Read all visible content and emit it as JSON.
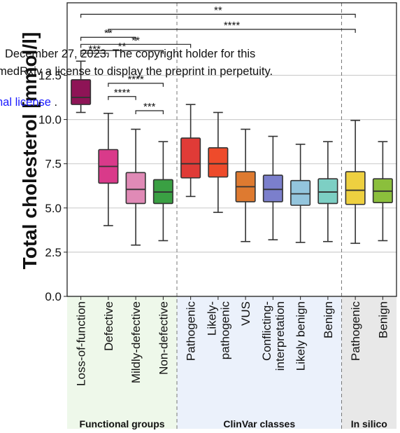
{
  "chart_data": {
    "type": "box",
    "ylabel": "Total cholesterol [mmol/l]",
    "ylim": [
      0,
      16.6
    ],
    "yticks": [
      0.0,
      2.5,
      5.0,
      7.5,
      10.0,
      12.5
    ],
    "ytick_labels": [
      "0.0",
      "2.5",
      "5.0",
      "7.5",
      "10.0",
      "12.5"
    ],
    "grid": "horizontal",
    "categories": [
      {
        "label": "Loss-of-function",
        "lines": [
          "Loss-of-function"
        ],
        "group": 0,
        "color": "#8e1456",
        "stats": {
          "whisker_low": 10.4,
          "q1": 10.85,
          "median": 11.25,
          "q3": 12.25,
          "whisker_high": 13.3
        }
      },
      {
        "label": "Defective",
        "lines": [
          "Defective"
        ],
        "group": 0,
        "color": "#d93a8a",
        "stats": {
          "whisker_low": 4.0,
          "q1": 6.4,
          "median": 7.35,
          "q3": 8.3,
          "whisker_high": 10.35
        }
      },
      {
        "label": "Mildly-defective",
        "lines": [
          "Mildly-defective"
        ],
        "group": 0,
        "color": "#e08ab6",
        "stats": {
          "whisker_low": 2.9,
          "q1": 5.25,
          "median": 6.05,
          "q3": 7.0,
          "whisker_high": 9.45
        }
      },
      {
        "label": "Non-defective",
        "lines": [
          "Non-defective"
        ],
        "group": 0,
        "color": "#3aa043",
        "stats": {
          "whisker_low": 3.15,
          "q1": 5.25,
          "median": 5.9,
          "q3": 6.6,
          "whisker_high": 8.75
        }
      },
      {
        "label": "Pathogenic",
        "lines": [
          "Pathogenic"
        ],
        "group": 1,
        "color": "#e03b37",
        "stats": {
          "whisker_low": 5.65,
          "q1": 6.7,
          "median": 7.5,
          "q3": 8.95,
          "whisker_high": 10.85
        }
      },
      {
        "label": "Likely-pathogenic",
        "lines": [
          "Likely-",
          "pathogenic"
        ],
        "group": 1,
        "color": "#ee4b2b",
        "stats": {
          "whisker_low": 4.75,
          "q1": 6.75,
          "median": 7.5,
          "q3": 8.4,
          "whisker_high": 10.4
        }
      },
      {
        "label": "VUS",
        "lines": [
          "VUS"
        ],
        "group": 1,
        "color": "#de7a30",
        "stats": {
          "whisker_low": 3.1,
          "q1": 5.35,
          "median": 6.2,
          "q3": 7.05,
          "whisker_high": 9.45
        }
      },
      {
        "label": "Conflicting-interpretation",
        "lines": [
          "Conflicting-",
          "interpretation"
        ],
        "group": 1,
        "color": "#7b7fcc",
        "stats": {
          "whisker_low": 3.2,
          "q1": 5.35,
          "median": 6.05,
          "q3": 6.85,
          "whisker_high": 9.05
        }
      },
      {
        "label": "Likely benign",
        "lines": [
          "Likely benign"
        ],
        "group": 1,
        "color": "#93c5dd",
        "stats": {
          "whisker_low": 3.05,
          "q1": 5.15,
          "median": 5.8,
          "q3": 6.55,
          "whisker_high": 8.6
        }
      },
      {
        "label": "Benign",
        "lines": [
          "Benign"
        ],
        "group": 1,
        "color": "#7dcfc4",
        "stats": {
          "whisker_low": 3.1,
          "q1": 5.25,
          "median": 5.9,
          "q3": 6.65,
          "whisker_high": 8.75
        }
      },
      {
        "label": "Pathogenic",
        "lines": [
          "Pathogenic"
        ],
        "group": 2,
        "color": "#eed040",
        "stats": {
          "whisker_low": 3.0,
          "q1": 5.2,
          "median": 6.0,
          "q3": 7.05,
          "whisker_high": 9.95
        }
      },
      {
        "label": "Benign",
        "lines": [
          "Benign"
        ],
        "group": 2,
        "color": "#8bbf3c",
        "stats": {
          "whisker_low": 3.15,
          "q1": 5.3,
          "median": 5.95,
          "q3": 6.65,
          "whisker_high": 8.75
        }
      }
    ],
    "groups": [
      {
        "label": "Functional groups",
        "background": "#eef8ea"
      },
      {
        "label": "ClinVar classes",
        "background": "#ebf1fb"
      },
      {
        "label": "In silico",
        "background": "#e8e8e8"
      }
    ],
    "significance": [
      {
        "from": 0,
        "to": 10,
        "y": 15.95,
        "label": "**"
      },
      {
        "from": 1,
        "to": 10,
        "y": 15.1,
        "label": "****"
      },
      {
        "from": 0,
        "to": 4,
        "y": 14.25,
        "label": "**"
      },
      {
        "from": 0,
        "to": 3,
        "y": 13.9,
        "label": "**"
      },
      {
        "from": 0,
        "to": 2,
        "y": 14.65,
        "label": "**"
      },
      {
        "from": 0,
        "to": 1,
        "y": 13.75,
        "label": "***"
      },
      {
        "from": 1,
        "to": 3,
        "y": 12.05,
        "label": "****"
      },
      {
        "from": 1,
        "to": 2,
        "y": 11.3,
        "label": "****"
      },
      {
        "from": 2,
        "to": 3,
        "y": 10.5,
        "label": "***"
      }
    ]
  },
  "watermark": {
    "line1": "December 27, 2023. The copyright holder for this",
    "line2": "medRxiv a license to display the preprint in perpetuity.",
    "line3": "nal license",
    "line3_suffix": " ."
  }
}
